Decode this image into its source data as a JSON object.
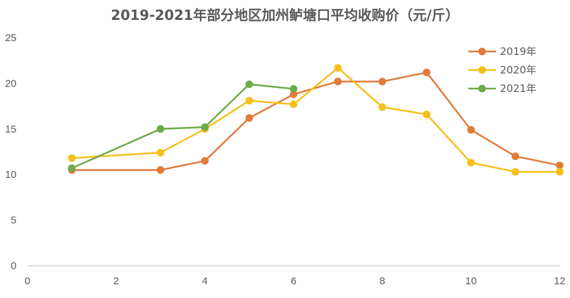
{
  "chart_data": {
    "type": "line",
    "title": "2019-2021年部分地区加州鲈塘口平均收购价（元/斤）",
    "xlabel": "",
    "ylabel": "",
    "xlim": [
      0,
      12
    ],
    "ylim": [
      0,
      25
    ],
    "x_ticks": [
      "0",
      "2",
      "4",
      "6",
      "8",
      "10",
      "12"
    ],
    "y_ticks": [
      "0",
      "5",
      "10",
      "15",
      "20",
      "25"
    ],
    "grid": false,
    "legend_position": "top-right",
    "series": [
      {
        "name": "2019年",
        "color": "#E07B39",
        "x": [
          1,
          3,
          4,
          5,
          6,
          7,
          8,
          9,
          10,
          11,
          12
        ],
        "values": [
          10.5,
          10.5,
          11.5,
          16.2,
          18.8,
          20.2,
          20.2,
          21.2,
          14.9,
          12.0,
          11.0
        ]
      },
      {
        "name": "2020年",
        "color": "#F5C01A",
        "x": [
          1,
          3,
          4,
          5,
          6,
          7,
          8,
          9,
          10,
          11,
          12
        ],
        "values": [
          11.8,
          12.4,
          15.0,
          18.1,
          17.7,
          21.7,
          17.4,
          16.6,
          11.3,
          10.3,
          10.3
        ]
      },
      {
        "name": "2021年",
        "color": "#6EAA48",
        "x": [
          1,
          3,
          4,
          5,
          6
        ],
        "values": [
          10.7,
          15.0,
          15.2,
          19.9,
          19.4
        ]
      }
    ]
  }
}
